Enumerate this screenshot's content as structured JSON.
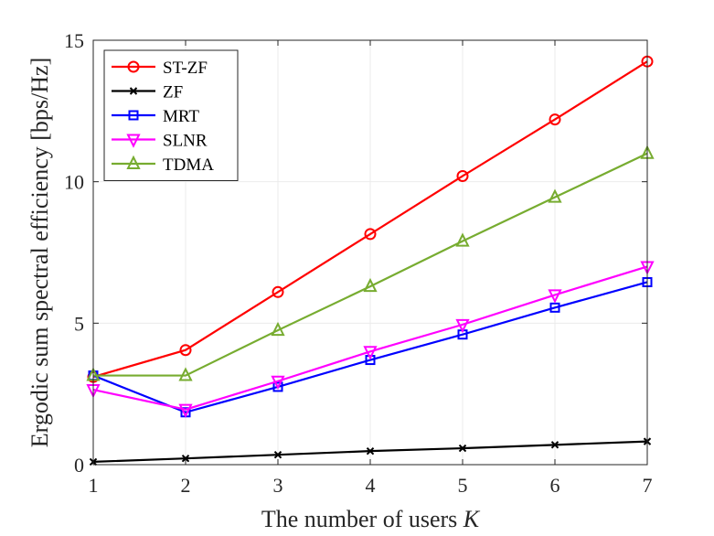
{
  "chart_data": {
    "type": "line",
    "xlabel": "The number of users ",
    "xlabel_var": "K",
    "ylabel": "Ergodic sum spectral efficiency [bps/Hz]",
    "x": [
      1,
      2,
      3,
      4,
      5,
      6,
      7
    ],
    "xlim": [
      1,
      7
    ],
    "ylim": [
      0,
      15
    ],
    "xticks": [
      "1",
      "2",
      "3",
      "4",
      "5",
      "6",
      "7"
    ],
    "yticks": [
      "0",
      "5",
      "10",
      "15"
    ],
    "grid": true,
    "legend_position": "top-left",
    "series": [
      {
        "name": "ST-ZF",
        "color": "#ff0000",
        "marker": "circle",
        "values": [
          3.1,
          4.05,
          6.1,
          8.15,
          10.2,
          12.2,
          14.25
        ]
      },
      {
        "name": "ZF",
        "color": "#000000",
        "marker": "x",
        "values": [
          0.1,
          0.22,
          0.35,
          0.48,
          0.58,
          0.7,
          0.82
        ]
      },
      {
        "name": "MRT",
        "color": "#0000ff",
        "marker": "square",
        "values": [
          3.15,
          1.85,
          2.75,
          3.7,
          4.6,
          5.55,
          6.45
        ]
      },
      {
        "name": "SLNR",
        "color": "#ff00ff",
        "marker": "triangle-down",
        "values": [
          2.65,
          1.95,
          2.95,
          4.0,
          4.95,
          6.0,
          7.0
        ]
      },
      {
        "name": "TDMA",
        "color": "#77ac30",
        "marker": "triangle-up",
        "values": [
          3.15,
          3.15,
          4.75,
          6.3,
          7.9,
          9.45,
          11.0
        ]
      }
    ]
  }
}
